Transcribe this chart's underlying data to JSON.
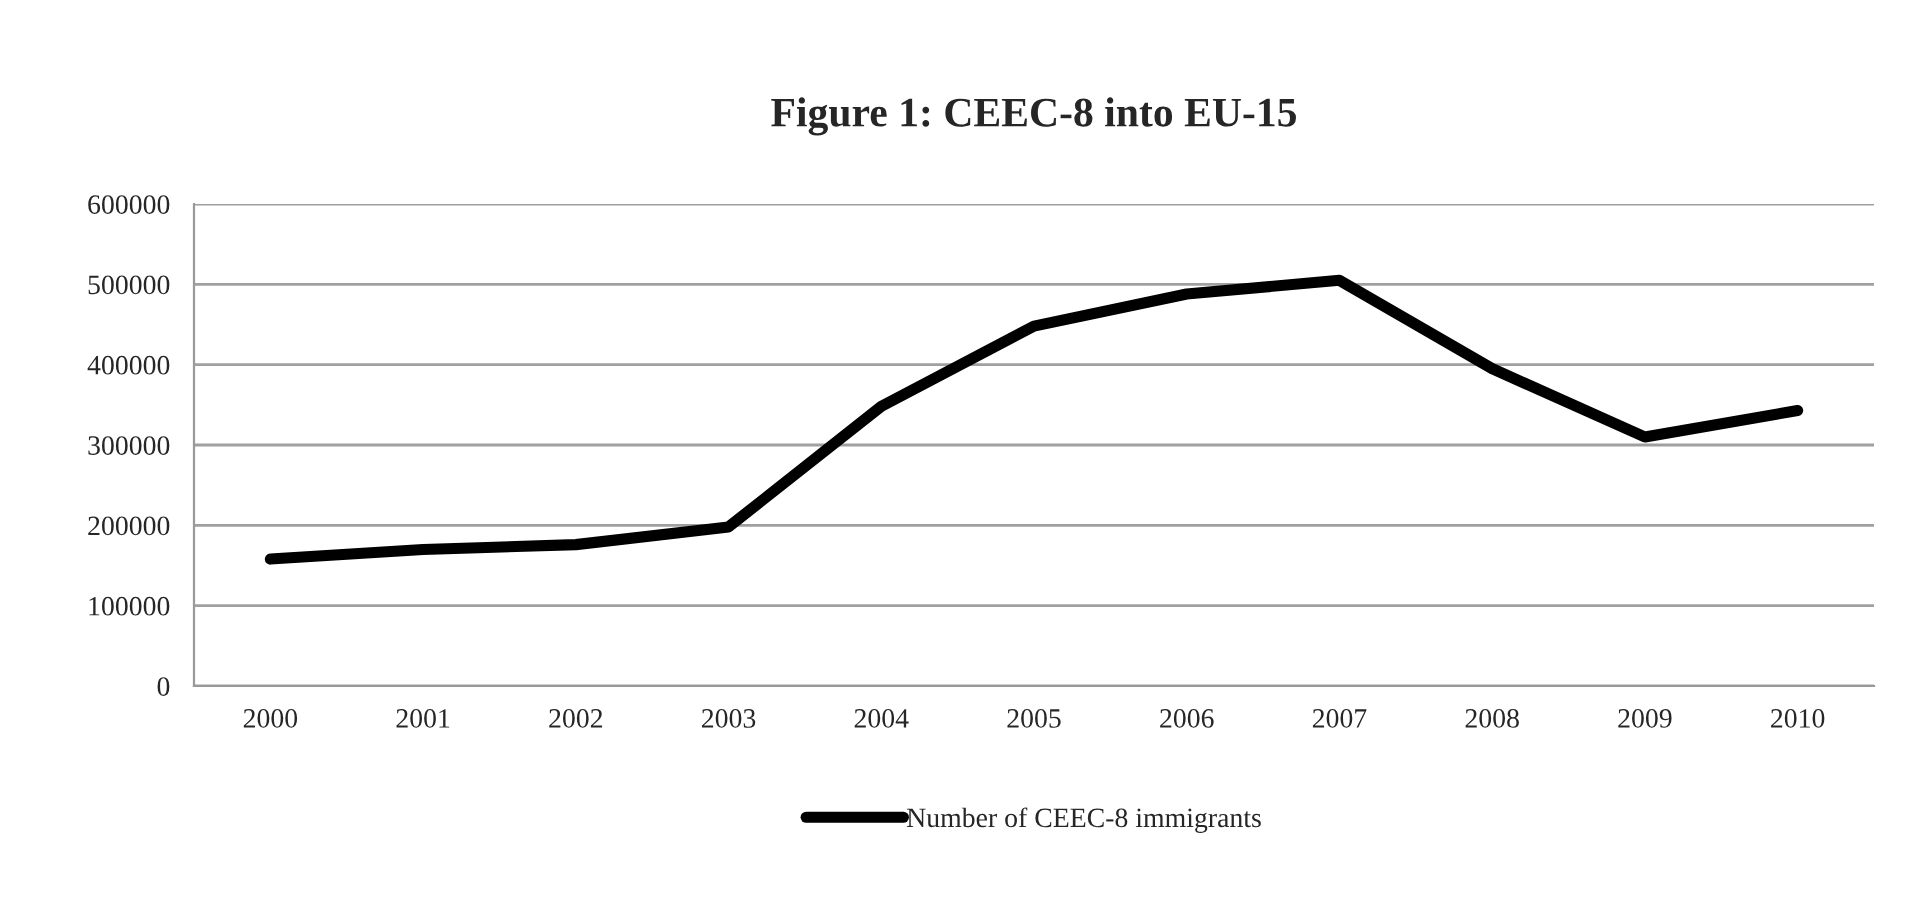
{
  "chart_data": {
    "type": "line",
    "title": "Figure 1: CEEC-8 into EU-15",
    "categories": [
      "2000",
      "2001",
      "2002",
      "2003",
      "2004",
      "2005",
      "2006",
      "2007",
      "2008",
      "2009",
      "2010"
    ],
    "series": [
      {
        "name": "Number of CEEC-8 immigrants",
        "color": "#000000",
        "values": [
          158000,
          170000,
          176000,
          198000,
          348000,
          448000,
          488000,
          505000,
          395000,
          310000,
          343000
        ]
      }
    ],
    "ylim": [
      0,
      600000
    ],
    "yticks": [
      0,
      100000,
      200000,
      300000,
      400000,
      500000,
      600000
    ],
    "grid": "y",
    "legend": "bottom",
    "marker": "none",
    "line_style": "solid"
  }
}
